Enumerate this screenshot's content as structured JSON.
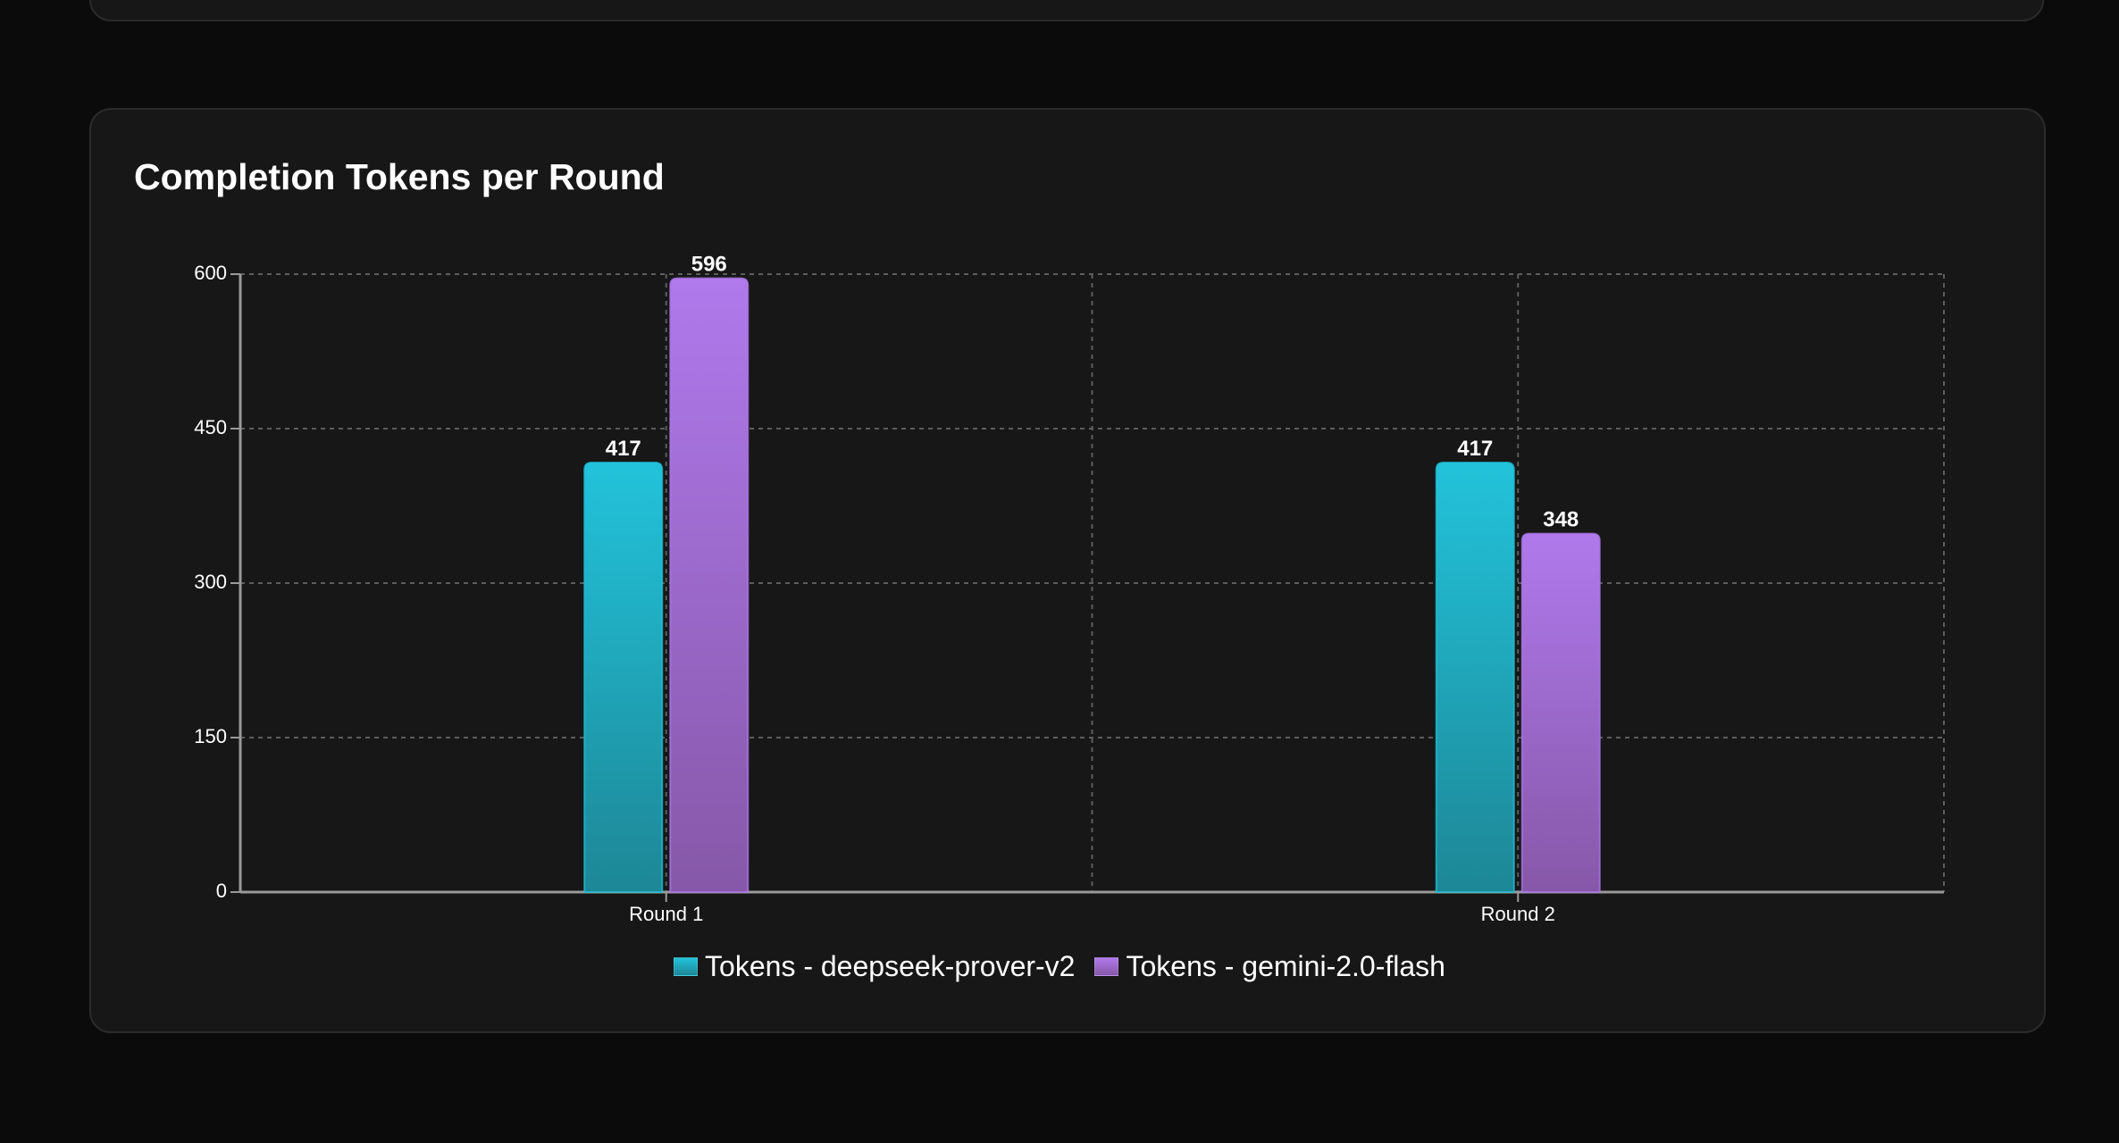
{
  "card_title": "Completion Tokens per Round",
  "chart_data": {
    "type": "bar",
    "title": "Completion Tokens per Round",
    "xlabel": "",
    "ylabel": "",
    "categories": [
      "Round 1",
      "Round 2"
    ],
    "series": [
      {
        "name": "Tokens - deepseek-prover-v2",
        "values": [
          417,
          417
        ],
        "color": "#22c3db",
        "color_dark": "#1d8796"
      },
      {
        "name": "Tokens - gemini-2.0-flash",
        "values": [
          596,
          348
        ],
        "color": "#b079ec",
        "color_dark": "#8658a8"
      }
    ],
    "ylim": [
      0,
      600
    ],
    "yticks": [
      0,
      150,
      300,
      450,
      600
    ],
    "grid": true,
    "data_labels": true,
    "legend_position": "bottom"
  },
  "colors": {
    "page_background": "#0b0b0b",
    "card_background": "#171717",
    "text": "#ffffff",
    "axis": "#9a9a9a",
    "grid": "#5d5d5d"
  }
}
